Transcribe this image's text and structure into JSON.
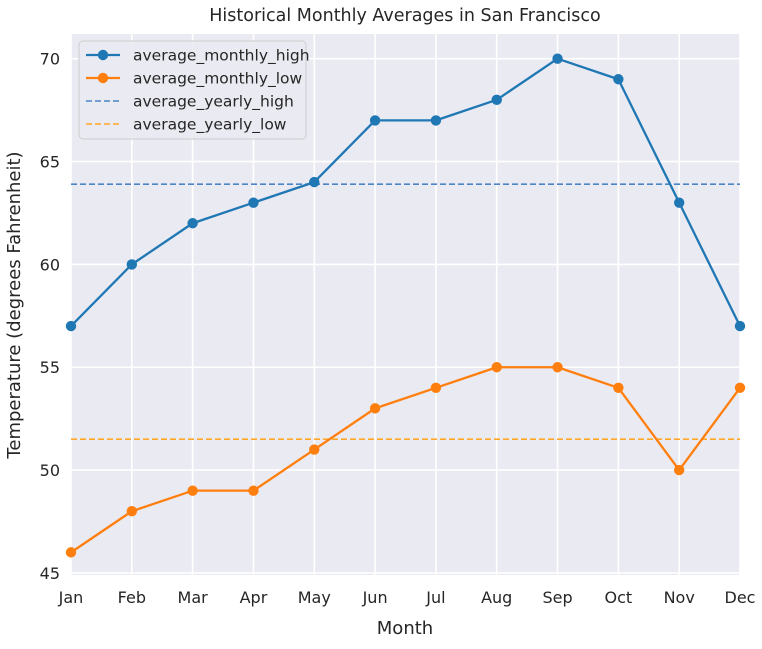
{
  "chart_data": {
    "type": "line",
    "title": "Historical Monthly Averages in San Francisco",
    "xlabel": "Month",
    "ylabel": "Temperature (degrees Fahrenheit)",
    "categories": [
      "Jan",
      "Feb",
      "Mar",
      "Apr",
      "May",
      "Jun",
      "Jul",
      "Aug",
      "Sep",
      "Oct",
      "Nov",
      "Dec"
    ],
    "ylim": [
      44.9,
      71.2
    ],
    "yticks": [
      45,
      50,
      55,
      60,
      65,
      70
    ],
    "grid": true,
    "legend_position": "top-left",
    "series": [
      {
        "name": "average_monthly_high",
        "style": "solid-marker",
        "color": "#1f77b4",
        "values": [
          57,
          60,
          62,
          63,
          64,
          67,
          67,
          68,
          70,
          69,
          63,
          57
        ]
      },
      {
        "name": "average_monthly_low",
        "style": "solid-marker",
        "color": "#ff7f0e",
        "values": [
          46,
          48,
          49,
          49,
          51,
          53,
          54,
          55,
          55,
          54,
          50,
          54
        ]
      }
    ],
    "hlines": [
      {
        "name": "average_yearly_high",
        "style": "dashed",
        "color": "#4a86c5",
        "value": 63.9
      },
      {
        "name": "average_yearly_low",
        "style": "dashed",
        "color": "#ffa726",
        "value": 51.5
      }
    ],
    "colors": {
      "background": "#eaeaf2",
      "grid": "#ffffff"
    }
  }
}
